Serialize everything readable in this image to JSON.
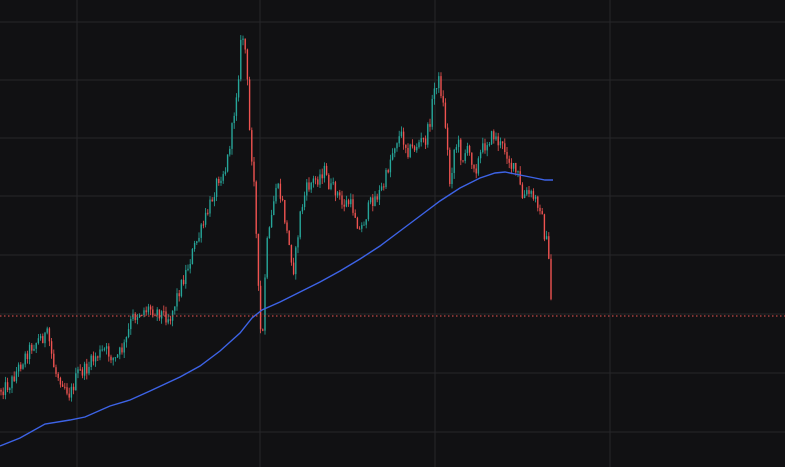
{
  "colors": {
    "background": "#111113",
    "grid": "#26262a",
    "up": "#26a69a",
    "down": "#ef5350",
    "ma": "#3d63e6",
    "price_line": "#ef5350"
  },
  "chart_data": {
    "type": "candlestick",
    "grid": true,
    "ylim": [
      0,
      467
    ],
    "current_price": 316,
    "moving_average": {
      "points": [
        [
          0,
          446
        ],
        [
          20,
          438
        ],
        [
          45,
          424
        ],
        [
          70,
          420
        ],
        [
          85,
          417
        ],
        [
          110,
          406
        ],
        [
          130,
          400
        ],
        [
          150,
          391
        ],
        [
          180,
          377
        ],
        [
          200,
          366
        ],
        [
          220,
          351
        ],
        [
          240,
          333
        ],
        [
          252,
          318
        ],
        [
          262,
          310
        ],
        [
          280,
          302
        ],
        [
          300,
          292
        ],
        [
          320,
          282
        ],
        [
          340,
          271
        ],
        [
          360,
          259
        ],
        [
          380,
          246
        ],
        [
          400,
          231
        ],
        [
          420,
          216
        ],
        [
          440,
          201
        ],
        [
          460,
          188
        ],
        [
          480,
          178
        ],
        [
          495,
          173
        ],
        [
          505,
          172
        ],
        [
          520,
          175
        ],
        [
          535,
          178
        ],
        [
          545,
          180
        ],
        [
          553,
          180
        ]
      ]
    },
    "price_path": [
      [
        0,
        390
      ],
      [
        10,
        384
      ],
      [
        20,
        365
      ],
      [
        30,
        348
      ],
      [
        40,
        338
      ],
      [
        48,
        335
      ],
      [
        55,
        372
      ],
      [
        62,
        380
      ],
      [
        70,
        395
      ],
      [
        78,
        373
      ],
      [
        86,
        370
      ],
      [
        95,
        357
      ],
      [
        105,
        350
      ],
      [
        115,
        360
      ],
      [
        125,
        345
      ],
      [
        132,
        318
      ],
      [
        140,
        312
      ],
      [
        150,
        308
      ],
      [
        160,
        312
      ],
      [
        170,
        318
      ],
      [
        178,
        293
      ],
      [
        186,
        272
      ],
      [
        194,
        248
      ],
      [
        202,
        229
      ],
      [
        210,
        205
      ],
      [
        218,
        178
      ],
      [
        226,
        168
      ],
      [
        232,
        130
      ],
      [
        238,
        80
      ],
      [
        242,
        30
      ],
      [
        246,
        55
      ],
      [
        250,
        140
      ],
      [
        254,
        175
      ],
      [
        258,
        285
      ],
      [
        262,
        355
      ],
      [
        266,
        250
      ],
      [
        270,
        230
      ],
      [
        276,
        185
      ],
      [
        282,
        200
      ],
      [
        288,
        240
      ],
      [
        294,
        270
      ],
      [
        300,
        215
      ],
      [
        306,
        190
      ],
      [
        312,
        182
      ],
      [
        318,
        178
      ],
      [
        324,
        170
      ],
      [
        330,
        188
      ],
      [
        336,
        190
      ],
      [
        342,
        205
      ],
      [
        348,
        202
      ],
      [
        354,
        210
      ],
      [
        360,
        232
      ],
      [
        366,
        215
      ],
      [
        372,
        200
      ],
      [
        378,
        195
      ],
      [
        384,
        185
      ],
      [
        390,
        160
      ],
      [
        396,
        140
      ],
      [
        402,
        135
      ],
      [
        408,
        150
      ],
      [
        414,
        148
      ],
      [
        420,
        142
      ],
      [
        426,
        140
      ],
      [
        430,
        120
      ],
      [
        434,
        90
      ],
      [
        438,
        78
      ],
      [
        442,
        95
      ],
      [
        446,
        130
      ],
      [
        450,
        185
      ],
      [
        454,
        150
      ],
      [
        458,
        142
      ],
      [
        462,
        160
      ],
      [
        466,
        150
      ],
      [
        470,
        155
      ],
      [
        476,
        168
      ],
      [
        482,
        150
      ],
      [
        488,
        140
      ],
      [
        494,
        135
      ],
      [
        500,
        145
      ],
      [
        506,
        150
      ],
      [
        512,
        168
      ],
      [
        518,
        175
      ],
      [
        522,
        198
      ],
      [
        528,
        193
      ],
      [
        534,
        198
      ],
      [
        540,
        205
      ],
      [
        544,
        232
      ],
      [
        548,
        248
      ],
      [
        551,
        298
      ],
      [
        553,
        330
      ]
    ]
  }
}
